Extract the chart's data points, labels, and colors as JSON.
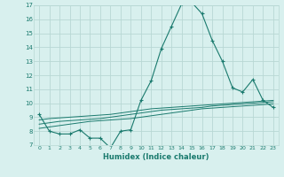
{
  "title": "",
  "xlabel": "Humidex (Indice chaleur)",
  "ylabel": "",
  "x_values": [
    0,
    1,
    2,
    3,
    4,
    5,
    6,
    7,
    8,
    9,
    10,
    11,
    12,
    13,
    14,
    15,
    16,
    17,
    18,
    19,
    20,
    21,
    22,
    23
  ],
  "line1": [
    9.2,
    8.0,
    7.8,
    7.8,
    8.1,
    7.5,
    7.5,
    6.8,
    8.0,
    8.1,
    10.2,
    11.6,
    13.9,
    15.5,
    17.1,
    17.2,
    16.4,
    14.5,
    13.0,
    11.1,
    10.8,
    11.7,
    10.2,
    9.7
  ],
  "line2": [
    8.2,
    8.3,
    8.4,
    8.5,
    8.6,
    8.7,
    8.75,
    8.8,
    8.85,
    8.9,
    9.0,
    9.1,
    9.2,
    9.3,
    9.4,
    9.5,
    9.6,
    9.65,
    9.7,
    9.75,
    9.8,
    9.85,
    9.9,
    9.95
  ],
  "line3": [
    8.5,
    8.6,
    8.7,
    8.75,
    8.8,
    8.85,
    8.9,
    9.0,
    9.1,
    9.2,
    9.3,
    9.4,
    9.5,
    9.55,
    9.6,
    9.65,
    9.7,
    9.8,
    9.85,
    9.9,
    9.95,
    10.0,
    10.05,
    10.1
  ],
  "line4": [
    8.8,
    8.9,
    8.95,
    9.0,
    9.05,
    9.1,
    9.15,
    9.2,
    9.3,
    9.4,
    9.5,
    9.6,
    9.65,
    9.7,
    9.75,
    9.8,
    9.85,
    9.9,
    9.95,
    10.0,
    10.05,
    10.1,
    10.15,
    10.2
  ],
  "line_color": "#1a7a6e",
  "bg_color": "#d8f0ee",
  "grid_color": "#b8d8d4",
  "ylim": [
    7,
    17
  ],
  "xlim": [
    -0.5,
    23.5
  ],
  "yticks": [
    7,
    8,
    9,
    10,
    11,
    12,
    13,
    14,
    15,
    16,
    17
  ],
  "xticks": [
    0,
    1,
    2,
    3,
    4,
    5,
    6,
    7,
    8,
    9,
    10,
    11,
    12,
    13,
    14,
    15,
    16,
    17,
    18,
    19,
    20,
    21,
    22,
    23
  ]
}
